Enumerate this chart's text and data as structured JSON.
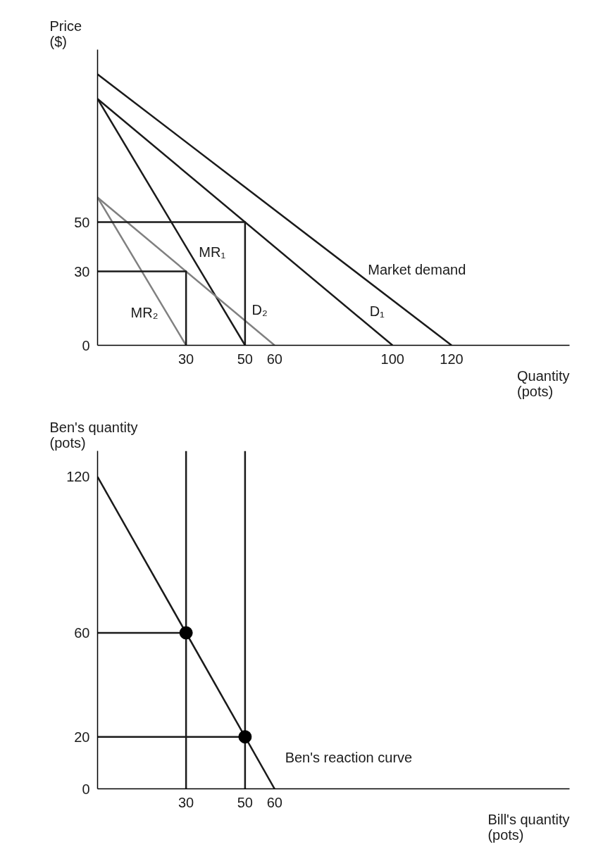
{
  "chart_data": [
    {
      "type": "line",
      "xlabel": "Quantity (pots)",
      "ylabel": "Price ($)",
      "xlim": [
        0,
        160
      ],
      "ylim": [
        0,
        120
      ],
      "xticks": [
        30,
        50,
        60,
        100,
        120
      ],
      "yticks": [
        0,
        30,
        50
      ],
      "tick_labels": "xy",
      "series": [
        {
          "name": "Market demand",
          "x": [
            0,
            120
          ],
          "values": [
            110,
            0
          ],
          "color": "#1a1a1a"
        },
        {
          "name": "D₁",
          "x": [
            0,
            100
          ],
          "values": [
            100,
            0
          ],
          "color": "#1a1a1a"
        },
        {
          "name": "MR₁",
          "x": [
            0,
            50
          ],
          "values": [
            100,
            0
          ],
          "color": "#1a1a1a"
        },
        {
          "name": "D₂",
          "x": [
            0,
            60
          ],
          "values": [
            60,
            0
          ],
          "color": "#808080"
        },
        {
          "name": "MR₂",
          "x": [
            0,
            30
          ],
          "values": [
            60,
            0
          ],
          "color": "#808080"
        },
        {
          "x": [
            0,
            50,
            50
          ],
          "values": [
            50,
            50,
            0
          ],
          "color": "#1a1a1a"
        },
        {
          "x": [
            0,
            30,
            30
          ],
          "values": [
            30,
            30,
            0
          ],
          "color": "#1a1a1a"
        }
      ]
    },
    {
      "type": "line",
      "xlabel": "Bill's quantity (pots)",
      "ylabel": "Ben's quantity (pots)",
      "xlim": [
        0,
        160
      ],
      "ylim": [
        0,
        130
      ],
      "xticks": [
        30,
        50,
        60
      ],
      "yticks": [
        0,
        20,
        60,
        120
      ],
      "series": [
        {
          "name": "Ben's reaction curve",
          "x": [
            0,
            60
          ],
          "values": [
            120,
            0
          ],
          "color": "#1a1a1a"
        },
        {
          "x": [
            30,
            30
          ],
          "values": [
            0,
            130
          ],
          "color": "#1a1a1a"
        },
        {
          "x": [
            50,
            50
          ],
          "values": [
            0,
            130
          ],
          "color": "#1a1a1a"
        },
        {
          "x": [
            0,
            30
          ],
          "values": [
            60,
            60
          ],
          "color": "#1a1a1a"
        },
        {
          "x": [
            0,
            50
          ],
          "values": [
            20,
            20
          ],
          "color": "#1a1a1a"
        },
        {
          "type": "scatter",
          "marker": "circle",
          "x": [
            30,
            50
          ],
          "values": [
            60,
            20
          ],
          "color": "#000000"
        }
      ]
    }
  ]
}
